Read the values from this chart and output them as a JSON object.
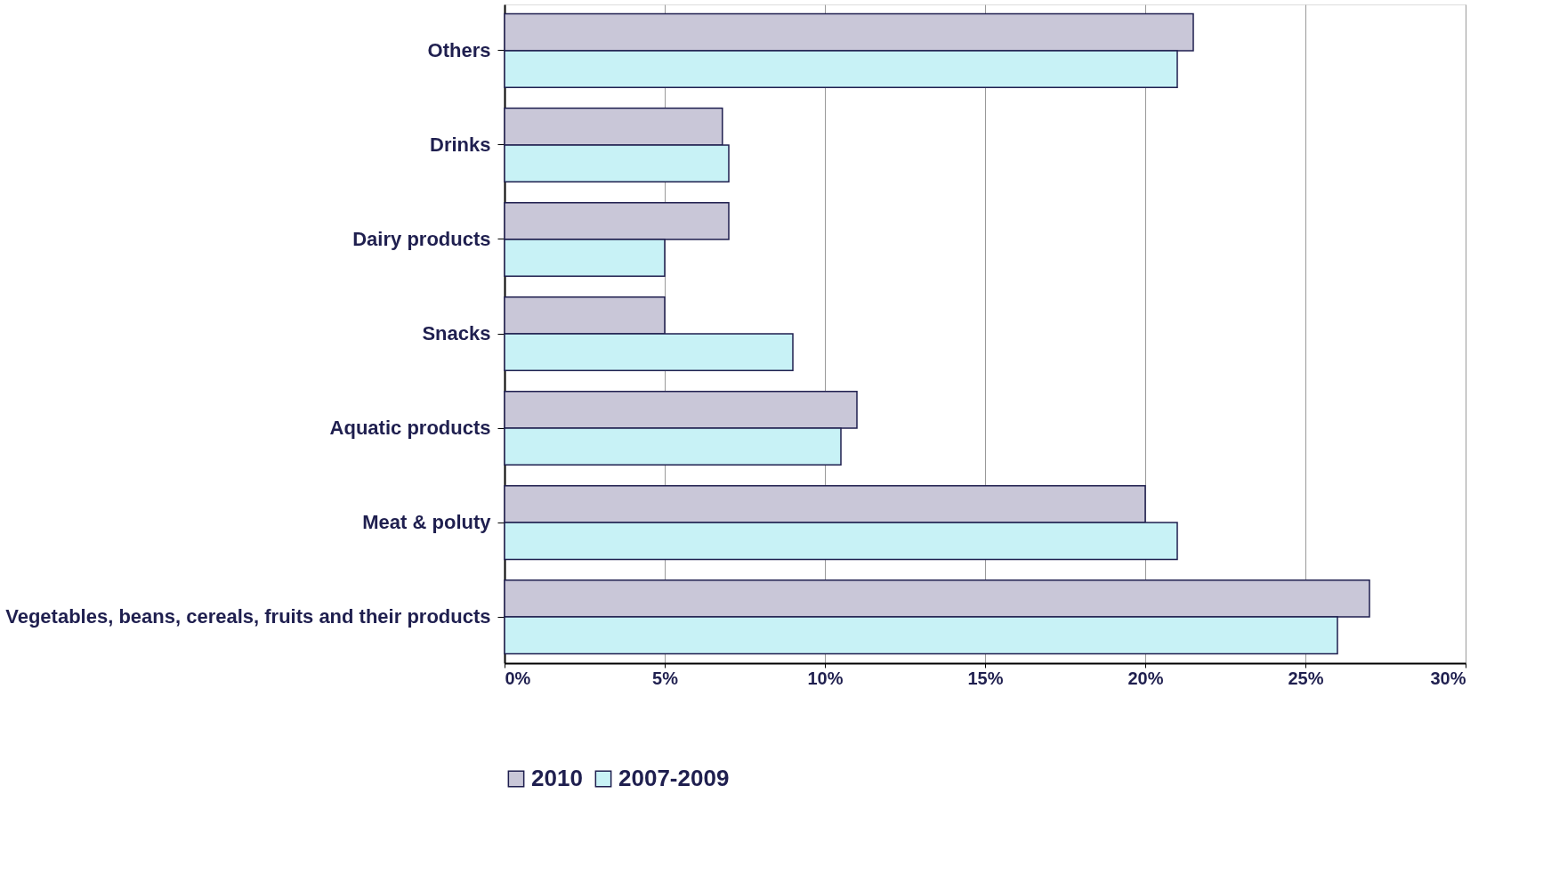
{
  "chart_data": {
    "type": "bar",
    "orientation": "horizontal",
    "categories": [
      "Others",
      "Drinks",
      "Dairy products",
      "Snacks",
      "Aquatic products",
      "Meat & poluty",
      "Vegetables, beans, cereals, fruits and their products"
    ],
    "series": [
      {
        "name": "2010",
        "color": "#c9c7d8",
        "values": [
          21.5,
          6.8,
          7,
          5,
          11,
          20,
          27
        ]
      },
      {
        "name": "2007-2009",
        "color": "#c8f2f6",
        "values": [
          21,
          7,
          5,
          9,
          10.5,
          21,
          26
        ]
      }
    ],
    "xlim": [
      0,
      30
    ],
    "xticks": [
      {
        "value": 0,
        "label": "0%"
      },
      {
        "value": 5,
        "label": "5%"
      },
      {
        "value": 10,
        "label": "10%"
      },
      {
        "value": 15,
        "label": "15%"
      },
      {
        "value": 20,
        "label": "20%"
      },
      {
        "value": 25,
        "label": "25%"
      },
      {
        "value": 30,
        "label": "30%"
      }
    ],
    "grid": "x",
    "legend": "bottom"
  }
}
